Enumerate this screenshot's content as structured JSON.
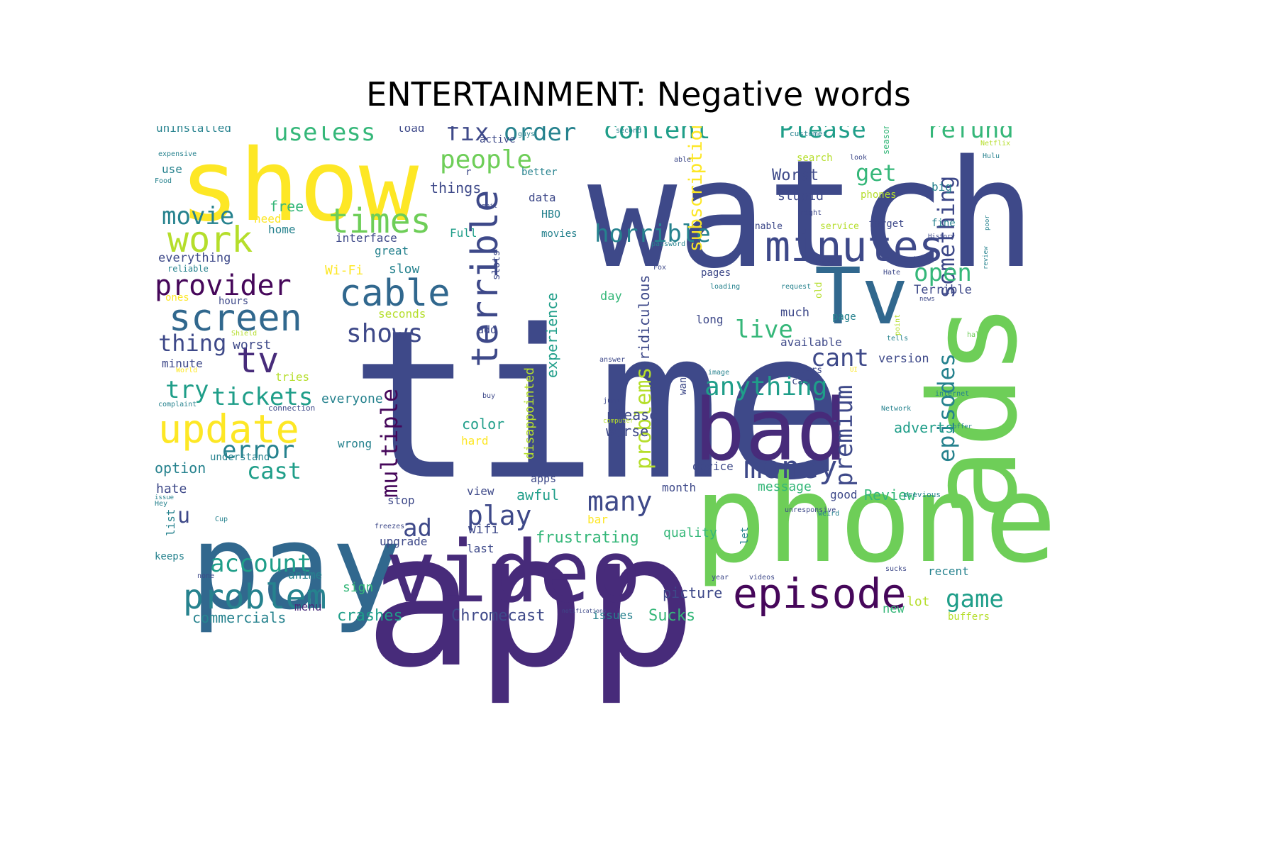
{
  "title": "ENTERTAINMENT: Negative words",
  "words": [
    "time",
    "app",
    "watch",
    "show",
    "pay",
    "phone",
    "video",
    "bad",
    "ads",
    "Tv",
    "episode",
    "minutes",
    "tv",
    "update",
    "cable",
    "screen",
    "work",
    "times",
    "provider",
    "problem",
    "terrible",
    "content",
    "order",
    "fix",
    "people",
    "useless",
    "Please",
    "refund",
    "money",
    "shows",
    "horrible",
    "multiple",
    "movie",
    "account",
    "play",
    "something",
    "episodes",
    "anything",
    "tickets",
    "error",
    "cast",
    "premium",
    "open",
    "live",
    "many",
    "cant",
    "try",
    "ad",
    "game",
    "get",
    "thing",
    "problems",
    "subscription",
    "u",
    "Chromecast",
    "crashes",
    "commercials",
    "Review",
    "frustrating",
    "Sucks",
    "picture",
    "adverts",
    "awful",
    "ridiculous",
    "experience",
    "disappointed",
    "color",
    "worse",
    "please",
    "Worst",
    "stupid",
    "tablet",
    "uninstalled",
    "load",
    "use",
    "things",
    "free",
    "need",
    "home",
    "interface",
    "everything",
    "Wi-Fi",
    "slow",
    "hours",
    "worst",
    "minute",
    "tries",
    "everyone",
    "wrong",
    "option",
    "hate",
    "list",
    "keeps",
    "anime",
    "sign",
    "menu",
    "stop",
    "upgrade",
    "wifi",
    "last",
    "issues",
    "new",
    "lot",
    "buffers",
    "recent",
    "version",
    "Terrible",
    "available",
    "much",
    "long",
    "day",
    "HBO",
    "data",
    "movies",
    "Full",
    "great",
    "seconds",
    "add",
    "slots",
    "active",
    "better",
    "r",
    "phones",
    "big",
    "unable",
    "service",
    "forget",
    "fine",
    "search",
    "customer",
    "pages",
    "loading",
    "old",
    "page",
    "cast",
    "stars",
    "want",
    "device",
    "month",
    "message",
    "good",
    "bar",
    "quality",
    "let",
    "apps",
    "view",
    "hard",
    "buy",
    "junk",
    "answer",
    "image",
    "Network",
    "internet",
    "offer",
    "previous",
    "unresponsive",
    "Hey",
    "weird",
    "sucks",
    "year",
    "videos",
    "notifications",
    "guys",
    "second",
    "expensive",
    "Food",
    "email",
    "able",
    "look",
    "seasons",
    "Netflix",
    "Hulu",
    "poor",
    "review",
    "History",
    "start",
    "password",
    "request",
    "right",
    "news",
    "tells",
    "point",
    "Hate",
    "UI",
    "computer",
    "reliable",
    "Shield",
    "World",
    "complaint",
    "connection",
    "understand",
    "ones",
    "none",
    "freezes",
    "issue",
    "Cup",
    "Fox",
    "half"
  ],
  "colors": {
    "dark_purple": "#46075a",
    "purple": "#472b7a",
    "indigo": "#3e4989",
    "blue": "#31688e",
    "teal": "#26828e",
    "green_teal": "#1f9e89",
    "green": "#35b779",
    "light_green": "#6ece58",
    "lime": "#b5de2b",
    "yellow": "#fde725"
  }
}
